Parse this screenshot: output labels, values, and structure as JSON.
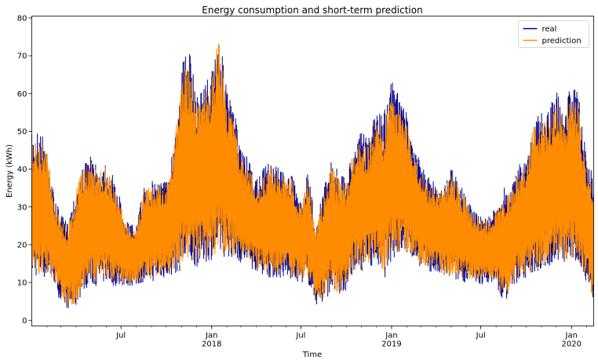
{
  "chart_data": {
    "type": "line",
    "title": "Energy consumption and short-term prediction",
    "xlabel": "Time",
    "ylabel": "Energy (kWh)",
    "ylim": [
      -1.5,
      80.5
    ],
    "yticks": [
      0,
      10,
      20,
      30,
      40,
      50,
      60,
      70,
      80
    ],
    "xlim": [
      "2017-01-01",
      "2020-02-15"
    ],
    "xticks": [
      {
        "date": "2017-07-01",
        "label": "Jul",
        "sublabel": ""
      },
      {
        "date": "2018-01-01",
        "label": "Jan",
        "sublabel": "2018"
      },
      {
        "date": "2018-07-01",
        "label": "Jul",
        "sublabel": ""
      },
      {
        "date": "2019-01-01",
        "label": "Jan",
        "sublabel": "2019"
      },
      {
        "date": "2019-07-01",
        "label": "Jul",
        "sublabel": ""
      },
      {
        "date": "2020-01-01",
        "label": "Jan",
        "sublabel": "2020"
      }
    ],
    "grid": false,
    "legend_position": "top-right",
    "series": [
      {
        "name": "real",
        "color": "#00008b",
        "envelope_dates": [
          "2017-01-01",
          "2017-01-15",
          "2017-02-01",
          "2017-02-15",
          "2017-03-01",
          "2017-03-15",
          "2017-04-01",
          "2017-04-15",
          "2017-05-01",
          "2017-05-15",
          "2017-06-01",
          "2017-06-15",
          "2017-07-01",
          "2017-07-15",
          "2017-08-01",
          "2017-08-15",
          "2017-09-01",
          "2017-09-15",
          "2017-10-01",
          "2017-10-15",
          "2017-11-01",
          "2017-11-15",
          "2017-12-01",
          "2017-12-15",
          "2018-01-01",
          "2018-01-15",
          "2018-02-01",
          "2018-02-15",
          "2018-03-01",
          "2018-03-15",
          "2018-04-01",
          "2018-04-15",
          "2018-05-01",
          "2018-05-15",
          "2018-06-01",
          "2018-06-15",
          "2018-07-01",
          "2018-07-15",
          "2018-08-01",
          "2018-08-15",
          "2018-09-01",
          "2018-09-15",
          "2018-10-01",
          "2018-10-15",
          "2018-11-01",
          "2018-11-15",
          "2018-12-01",
          "2018-12-15",
          "2019-01-01",
          "2019-01-15",
          "2019-02-01",
          "2019-02-15",
          "2019-03-01",
          "2019-03-15",
          "2019-04-01",
          "2019-04-15",
          "2019-05-01",
          "2019-05-15",
          "2019-06-01",
          "2019-06-15",
          "2019-07-01",
          "2019-07-15",
          "2019-08-01",
          "2019-08-15",
          "2019-09-01",
          "2019-09-15",
          "2019-10-01",
          "2019-10-15",
          "2019-11-01",
          "2019-11-15",
          "2019-12-01",
          "2019-12-15",
          "2020-01-01",
          "2020-01-15",
          "2020-02-01",
          "2020-02-15"
        ],
        "envelope_max": [
          49,
          51,
          47,
          33,
          28,
          26,
          36,
          41,
          44,
          40,
          43,
          38,
          32,
          26,
          25,
          35,
          37,
          38,
          37,
          46,
          68,
          73,
          60,
          63,
          66,
          77,
          61,
          56,
          46,
          43,
          37,
          40,
          43,
          41,
          39,
          38,
          31,
          40,
          25,
          35,
          43,
          40,
          37,
          47,
          50,
          48,
          56,
          55,
          64,
          60,
          55,
          46,
          42,
          38,
          37,
          35,
          41,
          38,
          33,
          29,
          28,
          27,
          30,
          35,
          36,
          41,
          43,
          53,
          55,
          56,
          61,
          56,
          64,
          60,
          43,
          38
        ],
        "envelope_min": [
          12,
          11,
          11,
          10,
          4,
          3,
          3,
          8,
          9,
          9,
          10,
          9,
          9,
          9,
          9,
          10,
          10,
          11,
          11,
          12,
          13,
          14,
          14,
          15,
          16,
          16,
          17,
          16,
          15,
          14,
          13,
          12,
          11,
          11,
          11,
          10,
          10,
          10,
          4,
          4,
          8,
          5,
          8,
          12,
          13,
          14,
          15,
          10,
          16,
          17,
          17,
          16,
          14,
          13,
          12,
          11,
          11,
          10,
          10,
          10,
          9,
          10,
          10,
          3,
          9,
          10,
          11,
          12,
          13,
          14,
          15,
          15,
          15,
          14,
          10,
          4
        ]
      },
      {
        "name": "prediction",
        "color": "#ff8c00",
        "envelope_dates": [
          "2017-01-01",
          "2017-01-15",
          "2017-02-01",
          "2017-02-15",
          "2017-03-01",
          "2017-03-15",
          "2017-04-01",
          "2017-04-15",
          "2017-05-01",
          "2017-05-15",
          "2017-06-01",
          "2017-06-15",
          "2017-07-01",
          "2017-07-15",
          "2017-08-01",
          "2017-08-15",
          "2017-09-01",
          "2017-09-15",
          "2017-10-01",
          "2017-10-15",
          "2017-11-01",
          "2017-11-15",
          "2017-12-01",
          "2017-12-15",
          "2018-01-01",
          "2018-01-15",
          "2018-02-01",
          "2018-02-15",
          "2018-03-01",
          "2018-03-15",
          "2018-04-01",
          "2018-04-15",
          "2018-05-01",
          "2018-05-15",
          "2018-06-01",
          "2018-06-15",
          "2018-07-01",
          "2018-07-15",
          "2018-08-01",
          "2018-08-15",
          "2018-09-01",
          "2018-09-15",
          "2018-10-01",
          "2018-10-15",
          "2018-11-01",
          "2018-11-15",
          "2018-12-01",
          "2018-12-15",
          "2019-01-01",
          "2019-01-15",
          "2019-02-01",
          "2019-02-15",
          "2019-03-01",
          "2019-03-15",
          "2019-04-01",
          "2019-04-15",
          "2019-05-01",
          "2019-05-15",
          "2019-06-01",
          "2019-06-15",
          "2019-07-01",
          "2019-07-15",
          "2019-08-01",
          "2019-08-15",
          "2019-09-01",
          "2019-09-15",
          "2019-10-01",
          "2019-10-15",
          "2019-11-01",
          "2019-11-15",
          "2019-12-01",
          "2019-12-15",
          "2020-01-01",
          "2020-01-15",
          "2020-02-01",
          "2020-02-15"
        ],
        "envelope_max": [
          47,
          48,
          45,
          32,
          26,
          25,
          35,
          40,
          42,
          39,
          41,
          37,
          30,
          25,
          24,
          34,
          36,
          36,
          36,
          44,
          66,
          68,
          58,
          61,
          64,
          75,
          58,
          54,
          44,
          41,
          36,
          38,
          41,
          40,
          38,
          37,
          30,
          38,
          24,
          34,
          41,
          38,
          36,
          45,
          48,
          46,
          54,
          52,
          61,
          58,
          52,
          44,
          40,
          36,
          35,
          34,
          39,
          36,
          32,
          28,
          27,
          26,
          29,
          34,
          35,
          39,
          41,
          51,
          53,
          54,
          58,
          53,
          61,
          57,
          41,
          36
        ],
        "envelope_min": [
          13,
          12,
          12,
          11,
          5,
          4,
          4,
          9,
          10,
          10,
          11,
          10,
          10,
          10,
          10,
          11,
          11,
          12,
          12,
          13,
          14,
          15,
          15,
          16,
          17,
          17,
          18,
          17,
          16,
          15,
          14,
          13,
          12,
          12,
          12,
          11,
          11,
          11,
          5,
          5,
          9,
          6,
          9,
          13,
          14,
          15,
          16,
          11,
          17,
          18,
          18,
          17,
          15,
          14,
          13,
          12,
          12,
          11,
          11,
          11,
          10,
          11,
          11,
          4,
          10,
          11,
          12,
          13,
          14,
          15,
          16,
          16,
          16,
          15,
          11,
          5
        ]
      }
    ]
  }
}
